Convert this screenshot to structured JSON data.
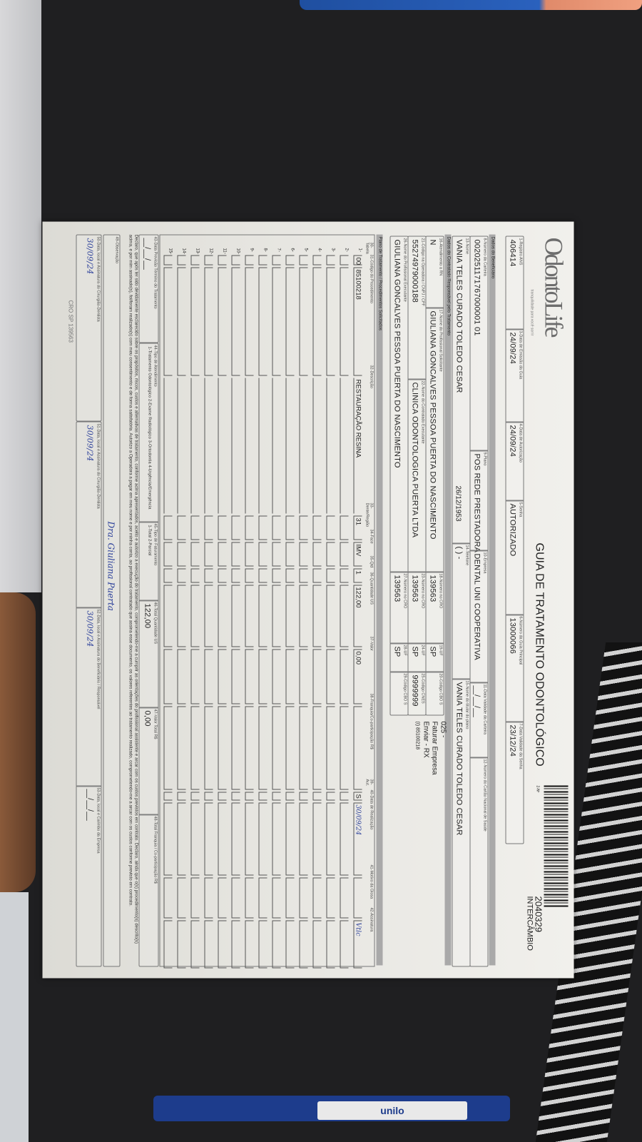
{
  "form": {
    "logo": "OdontoLife",
    "tagline": "tranquilidade para você sorrir",
    "title": "GUIA DE TRATAMENTO ODONTOLÓGICO",
    "guide_no_label": "2-Nº",
    "guide_number": "2040329",
    "guide_type": "INTERCÂMBIO",
    "sections": {
      "beneficiary": "Dados do Beneficiário",
      "contractor": "Dados do Contratado Responsável pelo Tratamento",
      "plan": "Plano de Tratamento / Procedimentos Solicitados"
    },
    "fields": {
      "registro_ans": {
        "label": "1-Registro ANS",
        "value": "406414"
      },
      "data_emissao": {
        "label": "3-Data de Emissão da Guia",
        "value": "24/09/24"
      },
      "data_autorizacao": {
        "label": "4-Data de Autorização",
        "value": "24/09/24"
      },
      "senha": {
        "label": "5-Senha",
        "value": "AUTORIZADO"
      },
      "guia_principal": {
        "label": "6-Número da Guia Principal",
        "value": "13000066"
      },
      "validade_senha": {
        "label": "7-Data Validade da Senha",
        "value": "23/12/24"
      },
      "carteira": {
        "label": "8-Número da Carteira",
        "value": "0020251171767000001 01"
      },
      "plano": {
        "label": "9-Plano",
        "value": "POS REDE PRESTADORA"
      },
      "empresa": {
        "label": "10-Empresa",
        "value": "DENTAL UNI  COOPERATIVA"
      },
      "validade_carteira": {
        "label": "11-Data Validade da Carteira",
        "value": "__/__/__"
      },
      "cns": {
        "label": "12-Número do Cartão Nacional de Saúde",
        "value": ""
      },
      "nome": {
        "label": "13-Nome",
        "value": "VANIA TELES CURADO TOLEDO CESAR"
      },
      "nascimento": {
        "value": "26/12/1953"
      },
      "telefone": {
        "label": "14-Telefone",
        "value": "(  )      -"
      },
      "titular": {
        "label": "15-Nome do titular do plano",
        "value": "VANIA TELES CURADO TOLEDO CESAR"
      },
      "rn": {
        "label": "16-Atendimento a RN",
        "value": "N"
      },
      "solicitante": {
        "label": "17-Nome do Profissional Solicitante",
        "value": "GIULIANA GONCALVES PESSOA PUERTA DO NASCIMENTO"
      },
      "cro_sol": {
        "label": "18-Número no CRO",
        "value": "139563"
      },
      "uf_sol": {
        "label": "19-UF",
        "value": "SP"
      },
      "cbo_sol": {
        "label": "20-Código CBO S",
        "value": ""
      },
      "cnpj": {
        "label": "21-Código na Operadora / CNPJ / CPF",
        "value": "55274979000188"
      },
      "contratado": {
        "label": "22-Nome do Contratado Executante",
        "value": "CLINICA ODONTOLOGICA PUERTA LTDA"
      },
      "cro_cont": {
        "label": "23-Número no CRO",
        "value": "139563"
      },
      "uf_cont": {
        "label": "24-UF",
        "value": "SP"
      },
      "cnes": {
        "label": "25-Código CNES",
        "value": "9999999"
      },
      "executante": {
        "label": "26-Nome do Profissional Executante",
        "value": "GIULIANA GONCALVES PESSOA PUERTA DO NASCIMENTO"
      },
      "cro_exec": {
        "label": "27-Número no CRO",
        "value": "139563"
      },
      "uf_exec": {
        "label": "28-UF",
        "value": "SP"
      },
      "cbo_exec": {
        "label": "29-Código CBO S",
        "value": ""
      }
    },
    "notes": [
      "025 -",
      "Faturar Empresa",
      "Enviar - RX",
      "(I) 85100218"
    ],
    "columns": [
      "30-Tabela",
      "31-Código do Procedimento",
      "32-Descrição",
      "33-Dente/Região",
      "34-Face",
      "35-Qtd",
      "36-Quantidade US",
      "37-Valor",
      "38-Franquia/Co-participação R$",
      "39-Aut.",
      "40-Data de Realização",
      "41-Motivo da Glosa",
      "42-Assinatura"
    ],
    "procedures": [
      {
        "n": "1-",
        "tabela": "00",
        "codigo": "85100218",
        "descricao": "RESTAURAÇÃO RESINA",
        "dente": "31",
        "face": "IMV",
        "qtd": "1",
        "us": "122,00",
        "valor": "0,00",
        "franquia": "",
        "aut": "S",
        "data": "30/09/24",
        "motivo": "",
        "assinatura": "Vtlc"
      },
      {
        "n": "2-"
      },
      {
        "n": "3-"
      },
      {
        "n": "4-"
      },
      {
        "n": "5-"
      },
      {
        "n": "6-"
      },
      {
        "n": "7-"
      },
      {
        "n": "8-"
      },
      {
        "n": "9-"
      },
      {
        "n": "10-"
      },
      {
        "n": "11-"
      },
      {
        "n": "12-"
      },
      {
        "n": "13-"
      },
      {
        "n": "14-"
      },
      {
        "n": "15-"
      }
    ],
    "footer": {
      "previsao": {
        "label": "43-Data Previsão Término do Tratamento",
        "value": "__/__/__"
      },
      "tipo_atendimento": {
        "label": "44-Tipo de Atendimento",
        "value": "1-Tratamento Odontológico  2-Exame Radiológico  3-Ortodontia  4-Urgência/Emergência"
      },
      "tipo_faturamento": {
        "label": "45-Tipo de Faturamento",
        "value": "1-Total  2-Parcial"
      },
      "total_us": {
        "label": "46-Total Quantidade US",
        "value": "122,00"
      },
      "valor_total": {
        "label": "47-Valor Total R$",
        "value": "0,00"
      },
      "total_franquia": {
        "label": "48-Total Franquia / Co-participação R$",
        "value": ""
      },
      "declaracao": "Declaro, que após ter sido devidamente esclarecido sobre os propósitos, riscos, custos e alternativas de tratamento, conforme acima apresentados, aceito e autorizo a execução do tratamento, comprometendo-me a cumprir as orientações do profissional assistente e arcar com os custos previstos em contrato. Declaro, ainda que o(s) procedimento(s) descrito(s) acima, e por mim assinado(s), foi/foram realizado(s) com meu consentimento e de forma satisfatória. Autorizo a Operadora a pagar em meu nome e por minha conta, ao profissional contratado que assina esse documento, os valores referentes ao tratamento realizado, comprometendo-me a arcar com os custos conforme previsto em contrato.",
      "observacao": {
        "label": "49-Observação",
        "value": ""
      },
      "sig_dentist": {
        "label": "50-Data, local e Assinatura do Cirurgião-Dentista",
        "value": "30/09/24",
        "stamp": "Dra. Giuliana Puerta",
        "cro": "CRO SP 139563"
      },
      "sig_beneficiary": {
        "label": "51-Data, local e Assinatura do Cirurgião-Dentista",
        "value": "30/09/24"
      },
      "sig_resp": {
        "label": "52-Data, local e Assinatura do Beneficiário / Responsável",
        "value": "30/09/24"
      },
      "sig_company": {
        "label": "53-Data, local e Carimbo da Empresa",
        "value": "__/__/__"
      }
    }
  },
  "scene": {
    "marker_label": "unilo"
  }
}
